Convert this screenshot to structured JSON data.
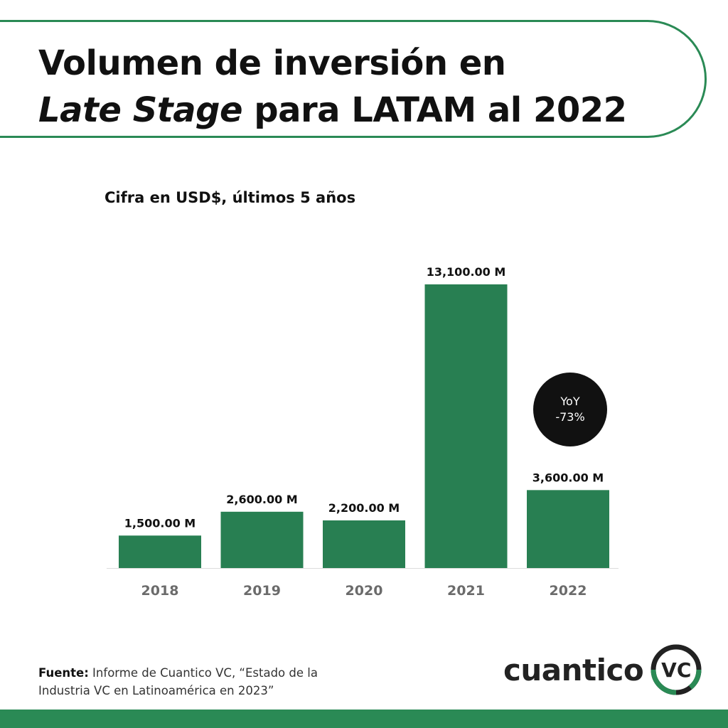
{
  "header": {
    "title_line1": "Volumen de inversión en",
    "title_italic": "Late Stage",
    "title_rest": " para LATAM al 2022"
  },
  "chart_data": {
    "type": "bar",
    "subtitle": "Cifra en USD$, últimos 5 años",
    "categories": [
      "2018",
      "2019",
      "2020",
      "2021",
      "2022"
    ],
    "values": [
      1500,
      2600,
      2200,
      13100,
      3600
    ],
    "value_labels": [
      "1,500.00 M",
      "2,600.00 M",
      "2,200.00 M",
      "13,100.00 M",
      "3,600.00 M"
    ],
    "ylim": [
      0,
      13100
    ],
    "grid": false,
    "bar_color": "#287f52",
    "annotation": {
      "label": "YoY",
      "value": "-73%"
    }
  },
  "footer": {
    "source_label": "Fuente:",
    "source_text": " Informe de Cuantico VC, “Estado de la Industria VC en Latinoamérica en 2023”",
    "logo_text": "cuantico",
    "logo_badge": "VC"
  },
  "colors": {
    "brand_green": "#2a8a55",
    "bar_green": "#287f52",
    "dark": "#111111"
  }
}
